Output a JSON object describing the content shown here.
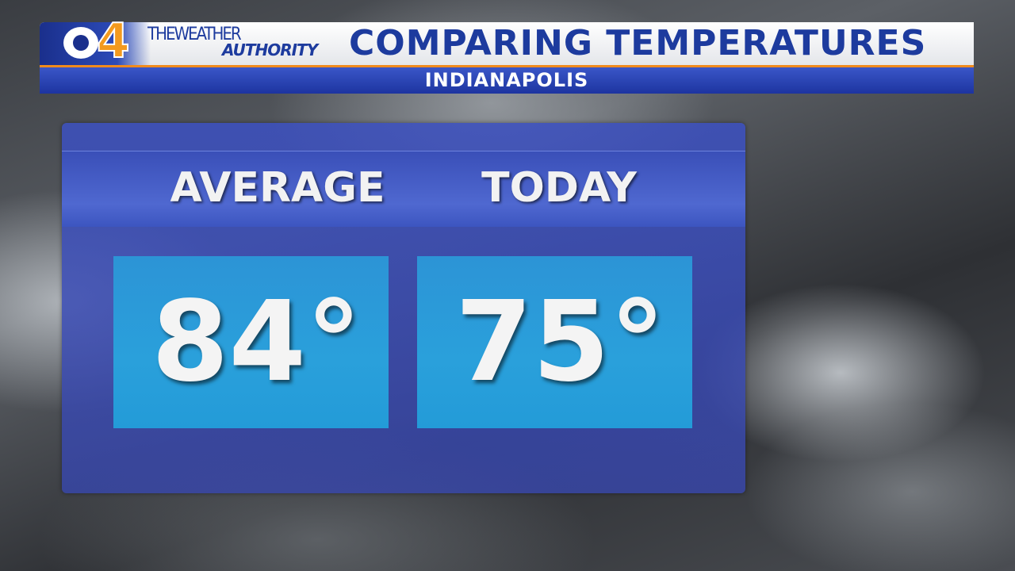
{
  "header": {
    "logo_number": "4",
    "brand_line1": "THEWEATHER",
    "brand_line2": "AUTHORITY",
    "title": "COMPARING TEMPERATURES",
    "subtitle": "INDIANAPOLIS"
  },
  "columns": [
    {
      "label": "AVERAGE",
      "value": "84°"
    },
    {
      "label": "TODAY",
      "value": "75°"
    }
  ]
}
